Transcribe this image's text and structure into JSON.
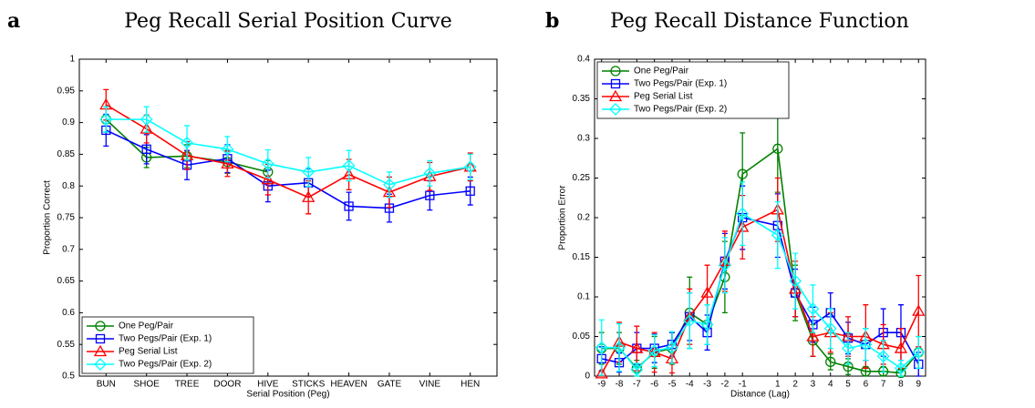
{
  "chart_data": [
    {
      "type": "line",
      "label": "a",
      "title": "Peg Recall Serial Position Curve",
      "x_label": "Serial Position (Peg)",
      "y_label": "Proportion Correct",
      "categories": [
        "BUN",
        "SHOE",
        "TREE",
        "DOOR",
        "HIVE",
        "STICKS",
        "HEAVEN",
        "GATE",
        "VINE",
        "HEN"
      ],
      "ylim": [
        0.5,
        1
      ],
      "yticks": [
        0.5,
        0.55,
        0.6,
        0.65,
        0.7,
        0.75,
        0.8,
        0.85,
        0.9,
        0.95,
        1
      ],
      "legend": "lower left",
      "series": [
        {
          "name": "One Peg/Pair",
          "color": "#008000",
          "marker": "circle",
          "values": [
            0.905,
            0.845,
            0.847,
            0.838,
            0.822,
            null,
            null,
            null,
            null,
            null
          ],
          "errors": [
            0.02,
            0.016,
            0.018,
            0.018,
            0.018,
            null,
            null,
            null,
            null,
            null
          ]
        },
        {
          "name": "Two Pegs/Pair (Exp. 1)",
          "color": "#0000ff",
          "marker": "square",
          "values": [
            0.888,
            0.858,
            0.833,
            0.843,
            0.8,
            0.805,
            0.768,
            0.765,
            0.785,
            0.792
          ],
          "errors": [
            0.025,
            0.023,
            0.023,
            0.022,
            0.025,
            0.022,
            0.022,
            0.022,
            0.023,
            0.022
          ]
        },
        {
          "name": "Peg Serial List",
          "color": "#ff0000",
          "marker": "triangle",
          "values": [
            0.928,
            0.89,
            0.848,
            0.835,
            0.81,
            0.782,
            0.818,
            0.79,
            0.815,
            0.83
          ],
          "errors": [
            0.024,
            0.022,
            0.022,
            0.02,
            0.024,
            0.026,
            0.024,
            0.024,
            0.022,
            0.022
          ]
        },
        {
          "name": "Two Pegs/Pair (Exp. 2)",
          "color": "#00ffff",
          "marker": "diamond",
          "values": [
            0.905,
            0.905,
            0.868,
            0.858,
            0.835,
            0.822,
            0.832,
            0.802,
            0.82,
            0.83
          ],
          "errors": [
            0.02,
            0.02,
            0.027,
            0.02,
            0.022,
            0.023,
            0.024,
            0.02,
            0.02,
            0.02
          ]
        }
      ]
    },
    {
      "type": "line",
      "label": "b",
      "title": "Peg Recall Distance Function",
      "x_label": "Distance (Lag)",
      "y_label": "Proportion Error",
      "x": [
        -9,
        -8,
        -7,
        -6,
        -5,
        -4,
        -3,
        -2,
        -1,
        1,
        2,
        3,
        4,
        5,
        6,
        7,
        8,
        9
      ],
      "xlim": [
        -9.4,
        9.4
      ],
      "xticks": [
        -9,
        -8,
        -7,
        -6,
        -5,
        -4,
        -3,
        -2,
        -1,
        1,
        2,
        3,
        4,
        5,
        6,
        7,
        8,
        9
      ],
      "ylim": [
        0,
        0.4
      ],
      "yticks": [
        0,
        0.05,
        0.1,
        0.15,
        0.2,
        0.25,
        0.3,
        0.35,
        0.4
      ],
      "legend": "upper left",
      "series": [
        {
          "name": "One Peg/Pair",
          "color": "#008000",
          "marker": "circle",
          "values": [
            0.035,
            0.035,
            0.01,
            0.03,
            0.035,
            0.08,
            0.065,
            0.125,
            0.255,
            0.287,
            0.105,
            0.045,
            0.018,
            0.012,
            0.006,
            0.006,
            0.004,
            0.03
          ],
          "errors": [
            0.02,
            0.02,
            0.01,
            0.02,
            0.02,
            0.045,
            0.025,
            0.045,
            0.052,
            0.055,
            0.035,
            0.02,
            0.01,
            0.01,
            0.006,
            0.006,
            0.004,
            0.02
          ]
        },
        {
          "name": "Two Pegs/Pair (Exp. 1)",
          "color": "#0000ff",
          "marker": "square",
          "values": [
            0.022,
            0.017,
            0.035,
            0.035,
            0.04,
            0.075,
            0.055,
            0.145,
            0.2,
            0.19,
            0.105,
            0.065,
            0.08,
            0.048,
            0.04,
            0.055,
            0.055,
            0.015
          ],
          "errors": [
            0.015,
            0.012,
            0.02,
            0.018,
            0.015,
            0.03,
            0.022,
            0.035,
            0.04,
            0.04,
            0.03,
            0.022,
            0.025,
            0.02,
            0.02,
            0.03,
            0.035,
            0.015
          ]
        },
        {
          "name": "Peg Serial List",
          "color": "#ff0000",
          "marker": "triangle",
          "values": [
            0.003,
            0.043,
            0.035,
            0.03,
            0.022,
            0.075,
            0.105,
            0.145,
            0.188,
            0.21,
            0.11,
            0.05,
            0.055,
            0.05,
            0.05,
            0.04,
            0.035,
            0.082
          ],
          "errors": [
            0.003,
            0.025,
            0.028,
            0.025,
            0.018,
            0.035,
            0.035,
            0.038,
            0.04,
            0.04,
            0.035,
            0.025,
            0.025,
            0.025,
            0.04,
            0.025,
            0.025,
            0.045
          ]
        },
        {
          "name": "Two Pegs/Pair (Exp. 2)",
          "color": "#00ffff",
          "marker": "diamond",
          "values": [
            0.036,
            0.036,
            0.008,
            0.032,
            0.036,
            0.07,
            0.065,
            0.14,
            0.205,
            0.178,
            0.12,
            0.085,
            0.06,
            0.035,
            0.04,
            0.025,
            0.01,
            0.03
          ],
          "errors": [
            0.035,
            0.03,
            0.008,
            0.02,
            0.02,
            0.035,
            0.025,
            0.035,
            0.04,
            0.042,
            0.035,
            0.03,
            0.025,
            0.02,
            0.02,
            0.02,
            0.01,
            0.02
          ]
        }
      ]
    }
  ]
}
